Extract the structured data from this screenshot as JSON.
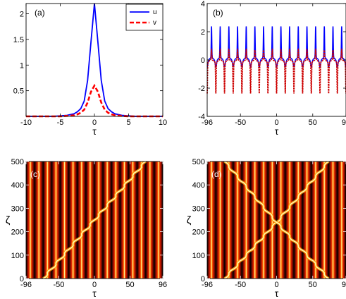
{
  "chart_data": [
    {
      "panel": "(a)",
      "type": "line",
      "xlabel": "τ",
      "ylabel": "",
      "xlim": [
        -10,
        10
      ],
      "ylim": [
        0,
        2.2
      ],
      "xticks": [
        "-10",
        "-5",
        "0",
        "5",
        "10"
      ],
      "yticks": [
        "0.5",
        "1",
        "1.5",
        "2"
      ],
      "legend": "top-right",
      "series": [
        {
          "name": "u",
          "color": "#0000ff",
          "style": "solid",
          "x": [
            -10,
            -8,
            -6,
            -5,
            -4,
            -3,
            -2.5,
            -2,
            -1.5,
            -1,
            -0.5,
            0,
            0.5,
            1,
            1.5,
            2,
            2.5,
            3,
            4,
            5,
            6,
            8,
            10
          ],
          "y": [
            0.0,
            0.0,
            0.0,
            0.01,
            0.02,
            0.05,
            0.09,
            0.15,
            0.3,
            0.7,
            1.45,
            2.2,
            1.45,
            0.7,
            0.3,
            0.15,
            0.09,
            0.05,
            0.02,
            0.01,
            0.0,
            0.0,
            0.0
          ]
        },
        {
          "name": "v",
          "color": "#ff0000",
          "style": "dashed",
          "x": [
            -10,
            -8,
            -6,
            -5,
            -4,
            -3,
            -2.5,
            -2,
            -1.5,
            -1,
            -0.5,
            0,
            0.5,
            1,
            1.5,
            2,
            2.5,
            3,
            4,
            5,
            6,
            8,
            10
          ],
          "y": [
            0.0,
            0.0,
            0.0,
            0.0,
            0.01,
            0.02,
            0.04,
            0.07,
            0.13,
            0.27,
            0.48,
            0.6,
            0.48,
            0.27,
            0.13,
            0.07,
            0.04,
            0.02,
            0.01,
            0.0,
            0.0,
            0.0,
            0.0
          ]
        }
      ]
    },
    {
      "panel": "(b)",
      "type": "line",
      "xlabel": "τ",
      "ylabel": "",
      "xlim": [
        -96,
        96
      ],
      "ylim": [
        -4,
        4
      ],
      "xticks": [
        "-96",
        "-50",
        "0",
        "50",
        "96"
      ],
      "yticks": [
        "-4",
        "-2",
        "0",
        "2",
        "4"
      ],
      "period": 12,
      "series": [
        {
          "name": "u",
          "color": "#0000ff",
          "peak": 2.2,
          "trough": -0.5,
          "baseline": 0.3
        },
        {
          "name": "v",
          "color": "#cc0000",
          "peak": 0.7,
          "trough": -2.2,
          "baseline": -0.3
        }
      ]
    },
    {
      "panel": "(c)",
      "type": "heatmap",
      "xlabel": "τ",
      "ylabel": "ζ",
      "xlim": [
        -96,
        96
      ],
      "ylim": [
        0,
        500
      ],
      "xticks": [
        "-96",
        "-50",
        "0",
        "50",
        "96"
      ],
      "yticks": [
        "0",
        "100",
        "200",
        "300",
        "400",
        "500"
      ],
      "lattice_spacing": 12,
      "colormap": [
        "#000000",
        "#7a0a00",
        "#d01a00",
        "#ff6a00",
        "#ffe060"
      ],
      "moving_soliton": {
        "tau_at_zeta_0": -72,
        "tau_at_zeta_500": 72
      }
    },
    {
      "panel": "(d)",
      "type": "heatmap",
      "xlabel": "τ",
      "ylabel": "ζ",
      "xlim": [
        -96,
        96
      ],
      "ylim": [
        0,
        500
      ],
      "xticks": [
        "-96",
        "-50",
        "0",
        "50",
        "96"
      ],
      "yticks": [
        "0",
        "100",
        "200",
        "300",
        "400",
        "500"
      ],
      "lattice_spacing": 12,
      "colormap": [
        "#000000",
        "#7a0a00",
        "#d01a00",
        "#ff6a00",
        "#ffe060"
      ],
      "colliding_solitons": {
        "collision_tau": 0,
        "collision_zeta": 240,
        "start_left": -72,
        "start_right": 72
      }
    }
  ]
}
